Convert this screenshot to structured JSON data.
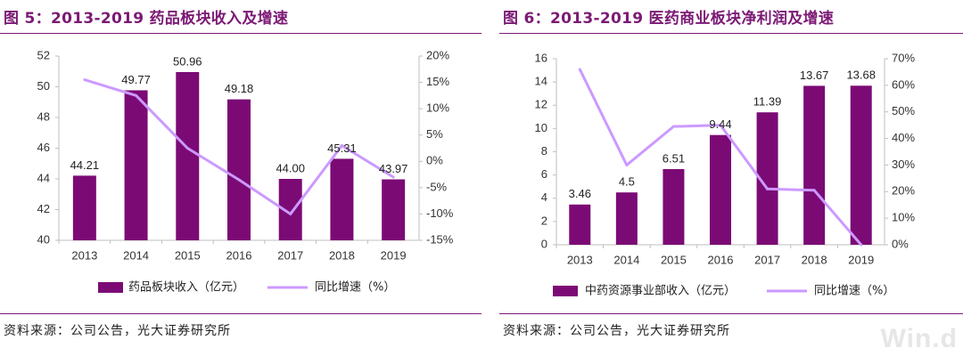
{
  "watermark": "Win.d",
  "colors": {
    "bar": "#7b0a75",
    "line": "#cc99ff",
    "title": "#7b1a74",
    "axis": "#bfbfbf"
  },
  "chart_data": [
    {
      "type": "bar",
      "title": "图 5：2013-2019 药品板块收入及增速",
      "source": "资料来源：公司公告，光大证券研究所",
      "categories": [
        "2013",
        "2014",
        "2015",
        "2016",
        "2017",
        "2018",
        "2019"
      ],
      "series": [
        {
          "name": "药品板块收入（亿元）",
          "type": "bar",
          "axis": "left",
          "values": [
            44.21,
            49.77,
            50.96,
            49.18,
            44.0,
            45.31,
            43.97
          ],
          "labels": [
            "44.21",
            "49.77",
            "50.96",
            "49.18",
            "44.00",
            "45.31",
            "43.97"
          ]
        },
        {
          "name": "同比增速（%）",
          "type": "line",
          "axis": "right",
          "values": [
            15.5,
            12.5,
            2.5,
            -3.5,
            -10.0,
            3.0,
            -3.0
          ]
        }
      ],
      "ylim": [
        40,
        52
      ],
      "yticks": [
        "40",
        "42",
        "44",
        "46",
        "48",
        "50",
        "52"
      ],
      "y2lim": [
        -15,
        20
      ],
      "y2ticks": [
        "-15%",
        "-10%",
        "-5%",
        "0%",
        "5%",
        "10%",
        "15%",
        "20%"
      ],
      "legend": "bottom"
    },
    {
      "type": "bar",
      "title": "图 6：2013-2019 医药商业板块净利润及增速",
      "source": "资料来源：公司公告，光大证券研究所",
      "categories": [
        "2013",
        "2014",
        "2015",
        "2016",
        "2017",
        "2018",
        "2019"
      ],
      "series": [
        {
          "name": "中药资源事业部收入（亿元）",
          "type": "bar",
          "axis": "left",
          "values": [
            3.46,
            4.5,
            6.51,
            9.44,
            11.39,
            13.67,
            13.68
          ],
          "labels": [
            "3.46",
            "4.5",
            "6.51",
            "9.44",
            "11.39",
            "13.67",
            "13.68"
          ]
        },
        {
          "name": "同比增速（%）",
          "type": "line",
          "axis": "right",
          "values": [
            66,
            30,
            44.5,
            45,
            21,
            20.5,
            0
          ]
        }
      ],
      "ylim": [
        0,
        16
      ],
      "yticks": [
        "0",
        "2",
        "4",
        "6",
        "8",
        "10",
        "12",
        "14",
        "16"
      ],
      "y2lim": [
        0,
        70
      ],
      "y2ticks": [
        "0%",
        "10%",
        "20%",
        "30%",
        "40%",
        "50%",
        "60%",
        "70%"
      ],
      "legend": "bottom"
    }
  ]
}
